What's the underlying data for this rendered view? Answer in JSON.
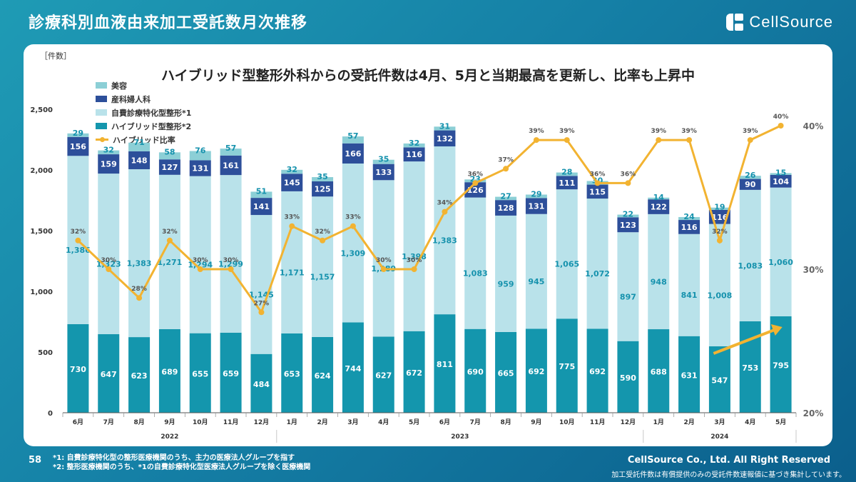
{
  "header": {
    "title": "診療科別血液由来加工受託数月次推移",
    "logo_text": "CellSource"
  },
  "chart_data": {
    "type": "bar",
    "stacked": true,
    "title": "ハイブリッド型整形外科からの受託件数は4月、5月と当期最高を更新し、比率も上昇中",
    "ylabel": "［件数］",
    "ylim": [
      0,
      2500
    ],
    "yticks": [
      "0",
      "500",
      "1,000",
      "1,500",
      "2,000",
      "2,500"
    ],
    "y2ticks": [
      "20%",
      "30%",
      "40%"
    ],
    "y2lim": [
      20,
      40
    ],
    "categories": [
      "6月",
      "7月",
      "8月",
      "9月",
      "10月",
      "11月",
      "12月",
      "1月",
      "2月",
      "3月",
      "4月",
      "5月",
      "6月",
      "7月",
      "8月",
      "9月",
      "10月",
      "11月",
      "12月",
      "1月",
      "2月",
      "3月",
      "4月",
      "5月"
    ],
    "years": [
      {
        "label": "2022",
        "start": 0,
        "end": 6
      },
      {
        "label": "2023",
        "start": 7,
        "end": 18
      },
      {
        "label": "2024",
        "start": 19,
        "end": 23
      }
    ],
    "series": [
      {
        "name": "ハイブリッド型整形*2",
        "color": "#1496ad",
        "label_color": "#ffffff",
        "values": [
          730,
          647,
          623,
          689,
          655,
          659,
          484,
          653,
          624,
          744,
          627,
          672,
          811,
          690,
          665,
          692,
          775,
          692,
          590,
          688,
          631,
          547,
          753,
          795
        ]
      },
      {
        "name": "自費診療特化型整形*1",
        "color": "#b9e2ea",
        "label_color": "#1692ad",
        "values": [
          1386,
          1323,
          1383,
          1271,
          1294,
          1299,
          1145,
          1171,
          1157,
          1309,
          1289,
          1398,
          1383,
          1083,
          959,
          945,
          1065,
          1072,
          897,
          948,
          841,
          1008,
          1083,
          1060
        ]
      },
      {
        "name": "産科婦人科",
        "color": "#2d4f9a",
        "label_color": "#ffffff",
        "values": [
          156,
          159,
          148,
          127,
          131,
          161,
          141,
          145,
          125,
          166,
          133,
          116,
          132,
          126,
          128,
          131,
          111,
          115,
          123,
          122,
          116,
          116,
          90,
          104
        ]
      },
      {
        "name": "美容",
        "color": "#8ccfd6",
        "label_color": "#1692ad",
        "values": [
          29,
          32,
          71,
          58,
          76,
          57,
          51,
          32,
          35,
          57,
          35,
          32,
          31,
          23,
          27,
          29,
          28,
          30,
          22,
          14,
          24,
          19,
          26,
          15
        ]
      }
    ],
    "line": {
      "name": "ハイブリッド比率",
      "color": "#f2b331",
      "values": [
        32,
        30,
        28,
        32,
        30,
        30,
        27,
        33,
        32,
        33,
        30,
        30,
        34,
        36,
        37,
        39,
        39,
        36,
        36,
        39,
        39,
        32,
        39,
        40
      ],
      "labels": [
        "32%",
        "30%",
        "28%",
        "32%",
        "30%",
        "30%",
        "27%",
        "33%",
        "32%",
        "33%",
        "30%",
        "30%",
        "34%",
        "36%",
        "37%",
        "39%",
        "39%",
        "36%",
        "36%",
        "39%",
        "39%",
        "32%",
        "39%",
        "40%"
      ]
    },
    "legend": [
      "美容",
      "産科婦人科",
      "自費診療特化型整形*1",
      "ハイブリッド型整形*2",
      "ハイブリッド比率"
    ],
    "legend_position": "top-left",
    "annotation": "upward arrow over 3月–5月 2024"
  },
  "footer": {
    "page_number": "58",
    "note1": "*1: 自費診療特化型の整形医療機関のうち、主力の医療法人グループを指す",
    "note2": "*2: 整形医療機関のうち、*1の自費診療特化型医療法人グループを除く医療機関",
    "copyright": "CellSource Co., Ltd. All Right Reserved",
    "source": "加工受託件数は有償提供のみの受託件数速報値に基づき集計しています。"
  }
}
